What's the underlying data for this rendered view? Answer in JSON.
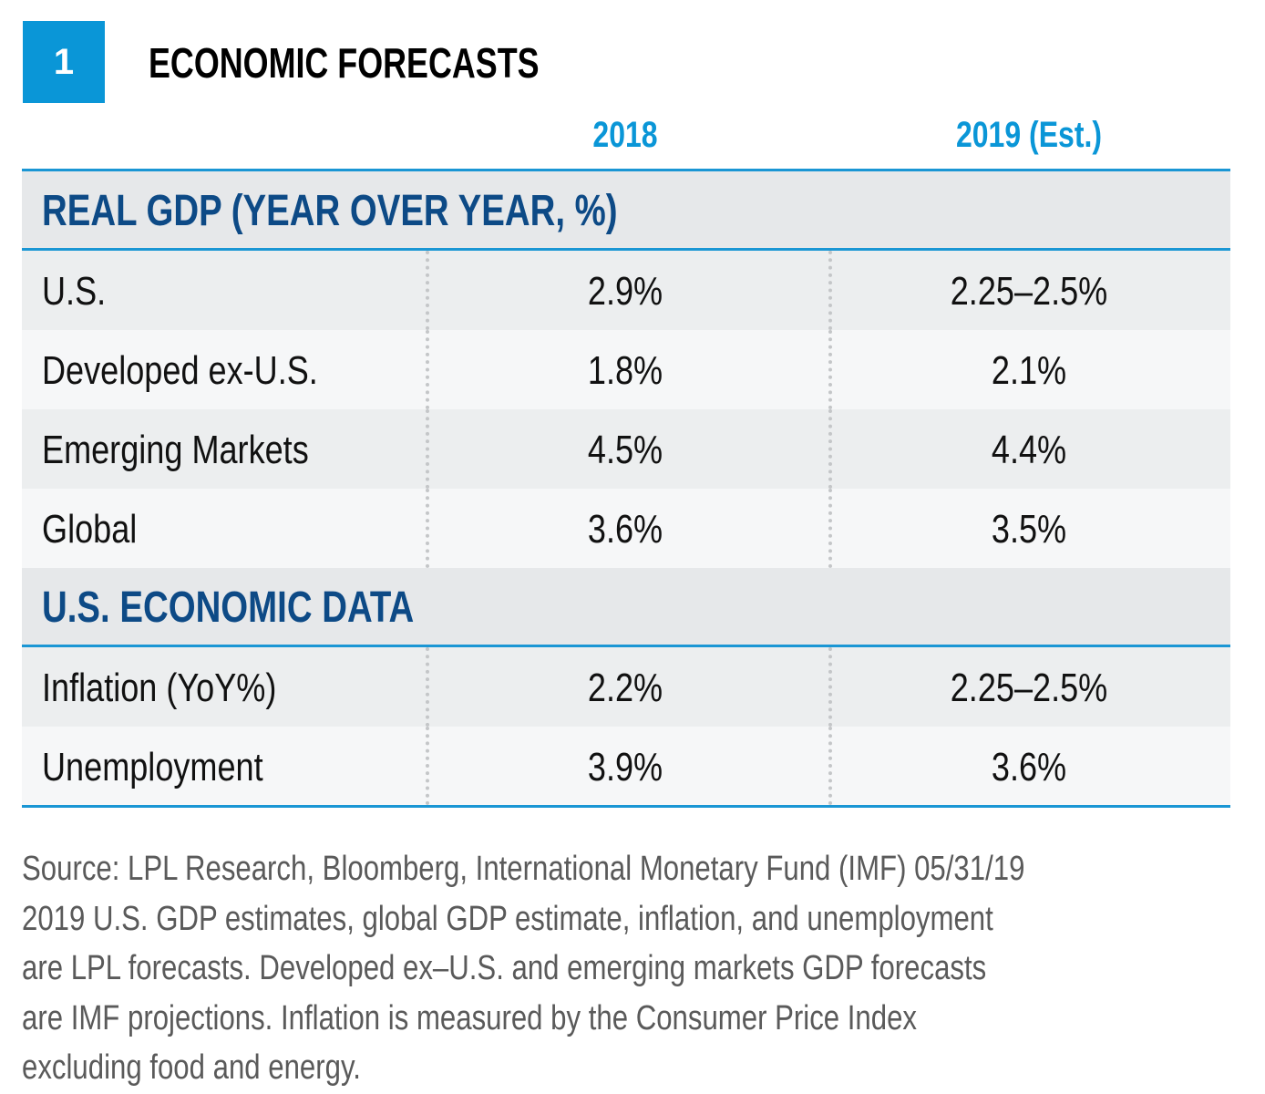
{
  "figure_number": "1",
  "title": "ECONOMIC FORECASTS",
  "colors": {
    "accent": "#0a96d7",
    "section_text": "#0d4a86",
    "section_bg": "#e6e8ea"
  },
  "chart_data": {
    "type": "table",
    "title": "ECONOMIC FORECASTS",
    "columns": [
      "",
      "2018",
      "2019 (Est.)"
    ],
    "sections": [
      {
        "heading": "REAL GDP (YEAR OVER YEAR, %)",
        "rows": [
          [
            "U.S.",
            "2.9%",
            "2.25–2.5%"
          ],
          [
            "Developed ex-U.S.",
            "1.8%",
            "2.1%"
          ],
          [
            "Emerging Markets",
            "4.5%",
            "4.4%"
          ],
          [
            "Global",
            "3.6%",
            "3.5%"
          ]
        ]
      },
      {
        "heading": "U.S. ECONOMIC DATA",
        "rows": [
          [
            "Inflation (YoY%)",
            "2.2%",
            "2.25–2.5%"
          ],
          [
            "Unemployment",
            "3.9%",
            "3.6%"
          ]
        ]
      }
    ]
  },
  "footnote": [
    "Source: LPL Research, Bloomberg, International Monetary Fund (IMF)   05/31/19",
    "2019 U.S. GDP estimates, global GDP estimate, inflation, and unemployment",
    "are LPL forecasts. Developed ex–U.S. and emerging markets GDP forecasts",
    "are IMF projections. Inflation is measured by the Consumer Price Index",
    "excluding food and energy."
  ]
}
